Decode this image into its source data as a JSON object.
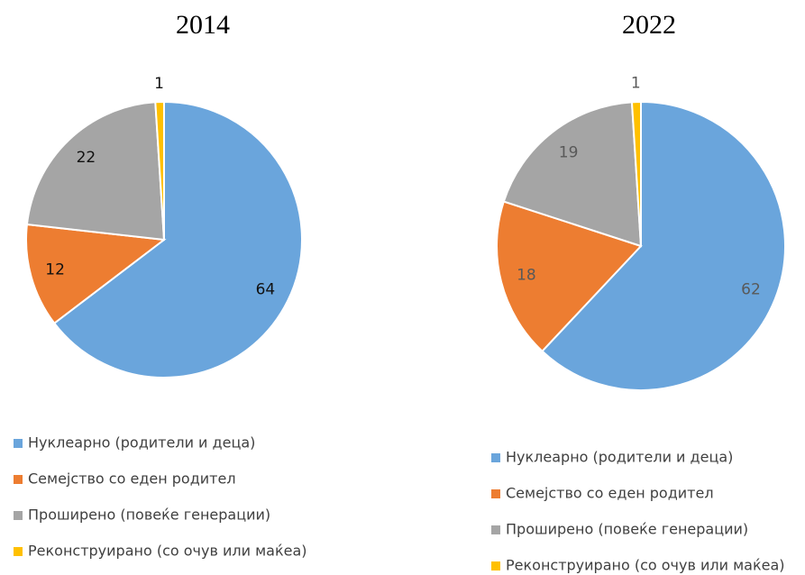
{
  "chart_data": [
    {
      "type": "pie",
      "title": "2014",
      "categories": [
        "Нуклеарно (родители и деца)",
        "Семејство со еден родител",
        "Проширено (повеќе генерации)",
        "Реконструирано (со очув или маќеа)"
      ],
      "values": [
        64,
        12,
        22,
        1
      ],
      "colors": [
        "#6aa5dc",
        "#ed7d31",
        "#a5a5a5",
        "#ffc000"
      ]
    },
    {
      "type": "pie",
      "title": "2022",
      "categories": [
        "Нуклеарно (родители и деца)",
        "Семејство со еден родител",
        "Проширено (повеќе генерации)",
        "Реконструирано (со очув или маќеа)"
      ],
      "values": [
        62,
        18,
        19,
        1
      ],
      "colors": [
        "#6aa5dc",
        "#ed7d31",
        "#a5a5a5",
        "#ffc000"
      ]
    }
  ]
}
